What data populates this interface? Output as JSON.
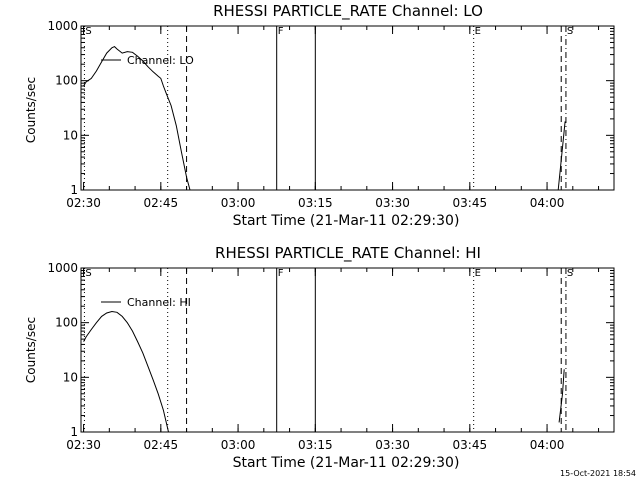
{
  "stamp": "15-Oct-2021 18:54",
  "chart_data": [
    {
      "type": "line",
      "title": "RHESSI PARTICLE_RATE Channel: LO",
      "xlabel": "Start Time (21-Mar-11 02:29:30)",
      "ylabel": "Counts/sec",
      "ylog": true,
      "ylim": [
        1,
        1000
      ],
      "xlim_minutes": [
        0,
        103.5
      ],
      "x_ticks": [
        "02:30",
        "02:45",
        "03:00",
        "03:15",
        "03:30",
        "03:45",
        "04:00"
      ],
      "y_ticks": [
        "1",
        "10",
        "100",
        "1000"
      ],
      "series": [
        {
          "name": "Channel: LO",
          "points": [
            [
              "02:30:00",
              80
            ],
            [
              "02:30:30",
              95
            ],
            [
              "02:31:30",
              110
            ],
            [
              "02:32:30",
              150
            ],
            [
              "02:33:30",
              220
            ],
            [
              "02:34:30",
              320
            ],
            [
              "02:35:30",
              400
            ],
            [
              "02:36:00",
              420
            ],
            [
              "02:36:30",
              380
            ],
            [
              "02:37:30",
              320
            ],
            [
              "02:38:30",
              340
            ],
            [
              "02:39:30",
              330
            ],
            [
              "02:40:30",
              280
            ],
            [
              "02:41:30",
              230
            ],
            [
              "02:42:30",
              180
            ],
            [
              "02:43:30",
              145
            ],
            [
              "02:44:30",
              120
            ],
            [
              "02:45:00",
              110
            ],
            [
              "02:45:30",
              80
            ],
            [
              "02:46:00",
              60
            ],
            [
              "02:47:00",
              35
            ],
            [
              "02:48:00",
              15
            ],
            [
              "02:49:00",
              5
            ],
            [
              "02:50:00",
              1.7
            ],
            [
              "02:50:40",
              1
            ]
          ]
        },
        {
          "name": "",
          "points": [
            [
              "04:02:10",
              1
            ],
            [
              "04:03:00",
              6
            ],
            [
              "04:03:30",
              18
            ]
          ]
        }
      ],
      "markers": [
        {
          "label": "S",
          "time": "02:30:10",
          "style": "dotted"
        },
        {
          "label": "",
          "time": "02:46:20",
          "style": "dotted"
        },
        {
          "label": "",
          "time": "02:50:00",
          "style": "dashed"
        },
        {
          "label": "F",
          "time": "03:07:30",
          "style": "solid"
        },
        {
          "label": "",
          "time": "03:15:00",
          "style": "solid"
        },
        {
          "label": "E",
          "time": "03:45:45",
          "style": "dotted"
        },
        {
          "label": "",
          "time": "04:02:45",
          "style": "dashed"
        },
        {
          "label": "S",
          "time": "04:03:40",
          "style": "dash-dot"
        }
      ],
      "legend": {
        "label": "Channel: LO",
        "position": "top-left"
      }
    },
    {
      "type": "line",
      "title": "RHESSI PARTICLE_RATE Channel: HI",
      "xlabel": "Start Time (21-Mar-11 02:29:30)",
      "ylabel": "Counts/sec",
      "ylog": true,
      "ylim": [
        1,
        1000
      ],
      "xlim_minutes": [
        0,
        103.5
      ],
      "x_ticks": [
        "02:30",
        "02:45",
        "03:00",
        "03:15",
        "03:30",
        "03:45",
        "04:00"
      ],
      "y_ticks": [
        "1",
        "10",
        "100",
        "1000"
      ],
      "series": [
        {
          "name": "Channel: HI",
          "points": [
            [
              "02:30:00",
              45
            ],
            [
              "02:30:30",
              55
            ],
            [
              "02:31:30",
              75
            ],
            [
              "02:32:30",
              100
            ],
            [
              "02:33:30",
              130
            ],
            [
              "02:34:30",
              150
            ],
            [
              "02:35:30",
              160
            ],
            [
              "02:36:30",
              155
            ],
            [
              "02:37:30",
              130
            ],
            [
              "02:38:30",
              100
            ],
            [
              "02:39:30",
              70
            ],
            [
              "02:40:30",
              45
            ],
            [
              "02:41:30",
              28
            ],
            [
              "02:42:30",
              16
            ],
            [
              "02:43:30",
              9
            ],
            [
              "02:44:30",
              5
            ],
            [
              "02:45:30",
              2.5
            ],
            [
              "02:46:30",
              1
            ]
          ]
        },
        {
          "name": "",
          "points": [
            [
              "04:02:20",
              1.5
            ],
            [
              "04:03:00",
              5
            ],
            [
              "04:03:20",
              14
            ]
          ]
        }
      ],
      "markers": [
        {
          "label": "S",
          "time": "02:30:10",
          "style": "dotted"
        },
        {
          "label": "",
          "time": "02:46:20",
          "style": "dotted"
        },
        {
          "label": "",
          "time": "02:50:00",
          "style": "dashed"
        },
        {
          "label": "F",
          "time": "03:07:30",
          "style": "solid"
        },
        {
          "label": "",
          "time": "03:15:00",
          "style": "solid"
        },
        {
          "label": "E",
          "time": "03:45:45",
          "style": "dotted"
        },
        {
          "label": "",
          "time": "04:02:45",
          "style": "dashed"
        },
        {
          "label": "S",
          "time": "04:03:40",
          "style": "dash-dot"
        }
      ],
      "legend": {
        "label": "Channel: HI",
        "position": "top-left"
      }
    }
  ]
}
